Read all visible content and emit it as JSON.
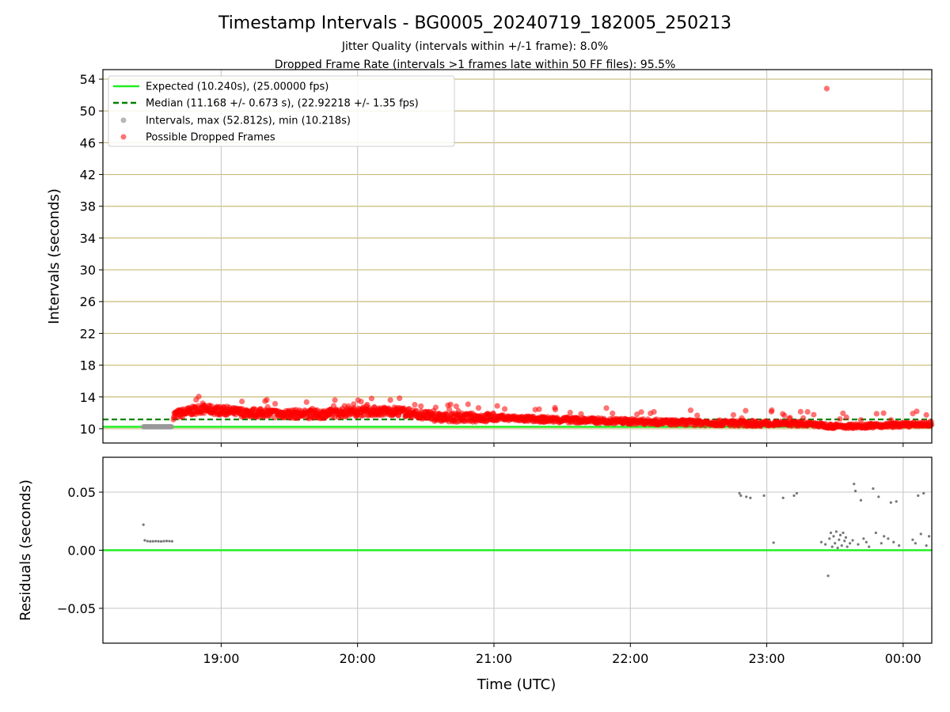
{
  "title": "Timestamp Intervals - BG0005_20240719_182005_250213",
  "subtitle_1": "Jitter Quality (intervals within +/-1 frame): 8.0%",
  "subtitle_2": "Dropped Frame Rate (intervals >1 frames late within 50 FF files): 95.5%",
  "colors": {
    "expected": "#22ee22",
    "median": "#008000",
    "intervals": "#999999",
    "dropped": "#ff0000",
    "residuals": "#777777",
    "hgrid_top": "#c8bc78",
    "grid": "#cccccc"
  },
  "chart_data": [
    {
      "type": "scatter",
      "panel": "intervals",
      "xlabel": "",
      "ylabel": "Intervals (seconds)",
      "x_ticks": [
        "19:00",
        "20:00",
        "21:00",
        "22:00",
        "23:00",
        "00:00"
      ],
      "x_range_hours": [
        18.133,
        24.21
      ],
      "ylim": [
        8.2,
        55.2
      ],
      "y_ticks": [
        10,
        14,
        18,
        22,
        26,
        30,
        34,
        38,
        42,
        46,
        50,
        54
      ],
      "grid": "on",
      "legend_position": "top-left",
      "legend": [
        "Expected (10.240s), (25.00000 fps)",
        "Median (11.168 +/- 0.673 s), (22.92218 +/- 1.35 fps)",
        "Intervals, max (52.812s), min (10.218s)",
        "Possible Dropped Frames"
      ],
      "expected_interval": 10.24,
      "median_interval": 11.168,
      "intervals_on_time": {
        "x_start_hours": 18.43,
        "x_end_hours": 18.64,
        "y": 10.25
      },
      "dropped_trend": [
        [
          18.65,
          11.7
        ],
        [
          18.85,
          12.5
        ],
        [
          19.1,
          12.1
        ],
        [
          19.4,
          11.9
        ],
        [
          19.7,
          11.8
        ],
        [
          20.05,
          12.2
        ],
        [
          20.3,
          12.2
        ],
        [
          20.6,
          11.4
        ],
        [
          21.0,
          11.4
        ],
        [
          21.3,
          11.2
        ],
        [
          21.8,
          11.0
        ],
        [
          22.3,
          10.8
        ],
        [
          22.8,
          10.7
        ],
        [
          23.3,
          10.6
        ],
        [
          23.5,
          10.3
        ],
        [
          23.8,
          10.4
        ],
        [
          24.21,
          10.6
        ]
      ],
      "dropped_outlier": {
        "x_hours": 23.44,
        "y": 52.812
      }
    },
    {
      "type": "scatter",
      "panel": "residuals",
      "xlabel": "Time (UTC)",
      "ylabel": "Residuals (seconds)",
      "x_ticks": [
        "19:00",
        "20:00",
        "21:00",
        "22:00",
        "23:00",
        "00:00"
      ],
      "x_range_hours": [
        18.133,
        24.21
      ],
      "ylim": [
        -0.08,
        0.08
      ],
      "y_ticks": [
        "0.05",
        "0.00",
        "−0.05"
      ],
      "y_tick_values": [
        0.05,
        0.0,
        -0.05
      ],
      "grid": "on",
      "zero_line": 0.0,
      "points": [
        [
          18.43,
          0.022
        ],
        [
          18.44,
          0.0085
        ],
        [
          18.46,
          0.0078
        ],
        [
          18.48,
          0.0076
        ],
        [
          18.5,
          0.0077
        ],
        [
          18.52,
          0.0078
        ],
        [
          18.54,
          0.0077
        ],
        [
          18.56,
          0.0076
        ],
        [
          18.58,
          0.0078
        ],
        [
          18.6,
          0.0079
        ],
        [
          18.62,
          0.0078
        ],
        [
          18.64,
          0.0077
        ],
        [
          22.8,
          0.049
        ],
        [
          22.81,
          0.047
        ],
        [
          22.85,
          0.046
        ],
        [
          22.88,
          0.045
        ],
        [
          22.98,
          0.047
        ],
        [
          23.05,
          0.0065
        ],
        [
          23.12,
          0.045
        ],
        [
          23.2,
          0.047
        ],
        [
          23.22,
          0.049
        ],
        [
          23.4,
          0.007
        ],
        [
          23.43,
          0.005
        ],
        [
          23.45,
          -0.022
        ],
        [
          23.46,
          0.01
        ],
        [
          23.47,
          0.015
        ],
        [
          23.48,
          0.003
        ],
        [
          23.49,
          0.012
        ],
        [
          23.5,
          0.006
        ],
        [
          23.51,
          0.016
        ],
        [
          23.52,
          0.002
        ],
        [
          23.53,
          0.009
        ],
        [
          23.54,
          0.013
        ],
        [
          23.55,
          0.004
        ],
        [
          23.56,
          0.015
        ],
        [
          23.57,
          0.008
        ],
        [
          23.58,
          0.011
        ],
        [
          23.59,
          0.003
        ],
        [
          23.61,
          0.006
        ],
        [
          23.63,
          0.0085
        ],
        [
          23.64,
          0.057
        ],
        [
          23.65,
          0.051
        ],
        [
          23.67,
          0.005
        ],
        [
          23.69,
          0.043
        ],
        [
          23.71,
          0.01
        ],
        [
          23.73,
          0.007
        ],
        [
          23.75,
          0.003
        ],
        [
          23.78,
          0.053
        ],
        [
          23.8,
          0.015
        ],
        [
          23.82,
          0.046
        ],
        [
          23.84,
          0.006
        ],
        [
          23.86,
          0.012
        ],
        [
          23.89,
          0.01
        ],
        [
          23.91,
          0.041
        ],
        [
          23.93,
          0.007
        ],
        [
          23.95,
          0.042
        ],
        [
          23.97,
          0.004
        ],
        [
          24.07,
          0.009
        ],
        [
          24.09,
          0.006
        ],
        [
          24.11,
          0.047
        ],
        [
          24.13,
          0.014
        ],
        [
          24.15,
          0.049
        ],
        [
          24.17,
          0.004
        ],
        [
          24.19,
          0.012
        ]
      ]
    }
  ]
}
